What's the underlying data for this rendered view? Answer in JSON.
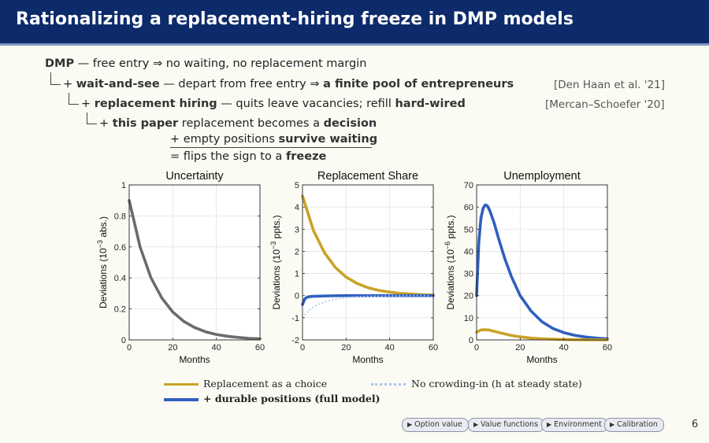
{
  "header": {
    "title": "Rationalizing a replacement-hiring freeze in DMP models"
  },
  "tree": {
    "l1": {
      "head": "DMP",
      "rest": " — free entry ⇒ no waiting, no replacement margin"
    },
    "l2": {
      "plus": "+ ",
      "head": "wait-and-see",
      "mid": " — depart from free entry ⇒ ",
      "tail": "a finite pool of entrepreneurs",
      "cite": "[Den Haan et al. '21]"
    },
    "l3": {
      "plus": "+ ",
      "head": "replacement hiring",
      "mid": " — quits leave vacancies; refill ",
      "tail": "hard-wired",
      "cite": "[Mercan–Schoefer '20]"
    },
    "l4": {
      "plus": "+ ",
      "head": "this paper",
      "mid": "  replacement becomes a ",
      "tail": "decision"
    },
    "l5": {
      "pre": "+ empty positions ",
      "tail": "survive waiting"
    },
    "l6": {
      "pre": "= flips the sign to a ",
      "tail": "freeze"
    }
  },
  "chart_data": [
    {
      "type": "line",
      "title": "Uncertainty",
      "xlabel": "Months",
      "ylabel": "Deviations (10^-3 abs.)",
      "xlim": [
        0,
        60
      ],
      "ylim": [
        0,
        1
      ],
      "xticks": [
        "0",
        "20",
        "40",
        "60"
      ],
      "yticks": [
        "0",
        "0.2",
        "0.4",
        "0.6",
        "0.8",
        "1"
      ],
      "grid": true,
      "series": [
        {
          "color": "#6b6b6b",
          "style": "solid",
          "x": [
            0,
            5,
            10,
            15,
            20,
            25,
            30,
            35,
            40,
            45,
            50,
            55,
            60
          ],
          "y": [
            0.9,
            0.6,
            0.4,
            0.27,
            0.18,
            0.12,
            0.08,
            0.053,
            0.035,
            0.024,
            0.016,
            0.01,
            0.007
          ]
        }
      ]
    },
    {
      "type": "line",
      "title": "Replacement Share",
      "xlabel": "Months",
      "ylabel": "Deviations (10^-3 ppts.)",
      "xlim": [
        0,
        60
      ],
      "ylim": [
        -2,
        5
      ],
      "xticks": [
        "0",
        "20",
        "40",
        "60"
      ],
      "yticks": [
        "-2",
        "-1",
        "0",
        "1",
        "2",
        "3",
        "4",
        "5"
      ],
      "grid": true,
      "series": [
        {
          "name": "Replacement as a choice",
          "color": "#c9a227",
          "style": "solid",
          "x": [
            0,
            5,
            10,
            15,
            20,
            25,
            30,
            35,
            40,
            45,
            50,
            55,
            60
          ],
          "y": [
            4.5,
            2.95,
            1.95,
            1.28,
            0.84,
            0.55,
            0.36,
            0.24,
            0.16,
            0.1,
            0.07,
            0.04,
            0.03
          ]
        },
        {
          "name": "+ durable positions (full model)",
          "color": "#2f5fbf",
          "style": "solid",
          "x": [
            0,
            1,
            2,
            3,
            5,
            8,
            12,
            20,
            30,
            45,
            60
          ],
          "y": [
            -0.4,
            -0.15,
            -0.08,
            -0.05,
            -0.03,
            -0.02,
            -0.01,
            0,
            0,
            0,
            0
          ]
        },
        {
          "name": "No crowding-in (h at steady state)",
          "color": "#a9c6ee",
          "style": "dotted",
          "x": [
            0,
            3,
            6,
            10,
            15,
            20,
            25,
            30,
            40,
            50,
            60
          ],
          "y": [
            -1.0,
            -0.66,
            -0.45,
            -0.28,
            -0.16,
            -0.09,
            -0.05,
            -0.03,
            -0.01,
            0,
            0
          ]
        }
      ]
    },
    {
      "type": "line",
      "title": "Unemployment",
      "xlabel": "Months",
      "ylabel": "Deviations (10^-6 ppts.)",
      "xlim": [
        0,
        60
      ],
      "ylim": [
        0,
        70
      ],
      "xticks": [
        "0",
        "20",
        "40",
        "60"
      ],
      "yticks": [
        "0",
        "10",
        "20",
        "30",
        "40",
        "50",
        "60",
        "70"
      ],
      "grid": true,
      "series": [
        {
          "name": "+ durable positions (full model)",
          "color": "#2f5fbf",
          "style": "solid",
          "x": [
            0,
            1,
            2,
            3,
            4,
            5,
            6,
            8,
            10,
            13,
            16,
            20,
            25,
            30,
            35,
            40,
            45,
            50,
            55,
            60
          ],
          "y": [
            20,
            44,
            55,
            59.5,
            61,
            60.5,
            58.5,
            53,
            46,
            36.5,
            28.5,
            20,
            13,
            8.2,
            5.2,
            3.3,
            2.1,
            1.3,
            0.8,
            0.5
          ]
        },
        {
          "name": "Replacement as a choice",
          "color": "#c9a227",
          "style": "solid",
          "x": [
            0,
            2,
            4,
            6,
            8,
            12,
            16,
            20,
            25,
            30,
            40,
            50,
            60
          ],
          "y": [
            3.5,
            4.5,
            4.6,
            4.4,
            3.9,
            2.9,
            2.0,
            1.4,
            0.8,
            0.5,
            0.2,
            0.08,
            0.03
          ]
        }
      ]
    }
  ],
  "legend": {
    "items": [
      {
        "label": "Replacement as a choice",
        "color": "#c9a227",
        "style": "solid"
      },
      {
        "label": "No crowding-in (h at steady state)",
        "color": "#a9c6ee",
        "style": "dotted"
      },
      {
        "label": "+ durable positions (full model)",
        "color": "#2f5fbf",
        "style": "solid"
      }
    ]
  },
  "nav": {
    "buttons": [
      "Option value",
      "Value functions",
      "Environment",
      "Calibration"
    ],
    "page": "6"
  }
}
